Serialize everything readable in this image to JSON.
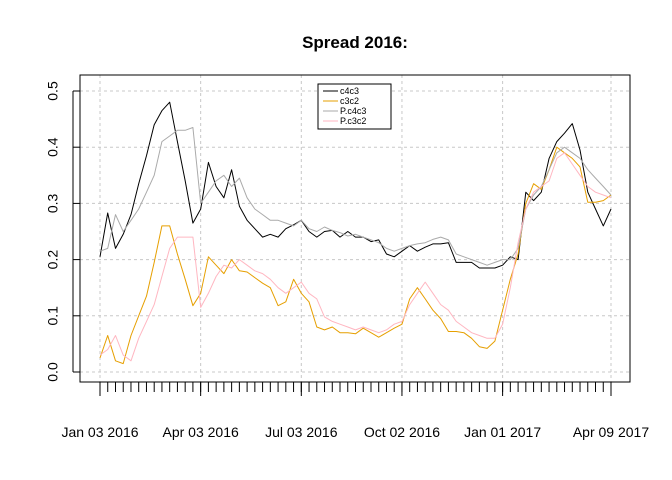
{
  "chart_data": {
    "type": "line",
    "title": "Spread 2016:",
    "xlabel": "",
    "ylabel": "",
    "ylim": [
      0,
      0.5
    ],
    "yticks": [
      0.0,
      0.1,
      0.2,
      0.3,
      0.4,
      0.5
    ],
    "ytick_labels": [
      "0.0",
      "0.1",
      "0.2",
      "0.3",
      "0.4",
      "0.5"
    ],
    "xlim": [
      "2016-01-03",
      "2017-04-09"
    ],
    "xticks": [
      {
        "date": "2016-01-03",
        "label": "Jan 03 2016"
      },
      {
        "date": "2016-04-03",
        "label": "Apr 03 2016"
      },
      {
        "date": "2016-07-03",
        "label": "Jul 03 2016"
      },
      {
        "date": "2016-10-02",
        "label": "Oct 02 2016"
      },
      {
        "date": "2017-01-01",
        "label": "Jan 01 2017"
      },
      {
        "date": "2017-04-09",
        "label": "Apr 09 2017"
      }
    ],
    "grid": true,
    "legend": "top-center",
    "x": [
      "2016-01-03",
      "2016-01-10",
      "2016-01-17",
      "2016-01-24",
      "2016-01-31",
      "2016-02-07",
      "2016-02-14",
      "2016-02-21",
      "2016-02-28",
      "2016-03-06",
      "2016-03-13",
      "2016-03-20",
      "2016-03-27",
      "2016-04-03",
      "2016-04-10",
      "2016-04-17",
      "2016-04-24",
      "2016-05-01",
      "2016-05-08",
      "2016-05-15",
      "2016-05-22",
      "2016-05-29",
      "2016-06-05",
      "2016-06-12",
      "2016-06-19",
      "2016-06-26",
      "2016-07-03",
      "2016-07-10",
      "2016-07-17",
      "2016-07-24",
      "2016-07-31",
      "2016-08-07",
      "2016-08-14",
      "2016-08-21",
      "2016-08-28",
      "2016-09-04",
      "2016-09-11",
      "2016-09-18",
      "2016-09-25",
      "2016-10-02",
      "2016-10-09",
      "2016-10-16",
      "2016-10-23",
      "2016-10-30",
      "2016-11-06",
      "2016-11-13",
      "2016-11-20",
      "2016-11-27",
      "2016-12-04",
      "2016-12-11",
      "2016-12-18",
      "2016-12-25",
      "2017-01-01",
      "2017-01-08",
      "2017-01-15",
      "2017-01-22",
      "2017-01-29",
      "2017-02-05",
      "2017-02-12",
      "2017-02-19",
      "2017-02-26",
      "2017-03-05",
      "2017-03-12",
      "2017-03-19",
      "2017-03-26",
      "2017-04-02",
      "2017-04-09"
    ],
    "series": [
      {
        "name": "c4c3",
        "color": "#000000",
        "values": [
          0.205,
          0.283,
          0.22,
          0.245,
          0.28,
          0.335,
          0.385,
          0.44,
          0.465,
          0.48,
          0.41,
          0.34,
          0.265,
          0.29,
          0.373,
          0.33,
          0.31,
          0.36,
          0.295,
          0.27,
          0.255,
          0.24,
          0.245,
          0.24,
          0.255,
          0.262,
          0.27,
          0.25,
          0.24,
          0.25,
          0.252,
          0.24,
          0.25,
          0.24,
          0.24,
          0.232,
          0.235,
          0.21,
          0.205,
          0.215,
          0.225,
          0.215,
          0.222,
          0.228,
          0.228,
          0.23,
          0.195,
          0.195,
          0.195,
          0.185,
          0.185,
          0.185,
          0.19,
          0.205,
          0.2,
          0.32,
          0.305,
          0.32,
          0.38,
          0.41,
          0.425,
          0.442,
          0.395,
          0.32,
          0.29,
          0.26,
          0.29
        ]
      },
      {
        "name": "c3c2",
        "color": "#e69f00",
        "values": [
          0.025,
          0.065,
          0.02,
          0.015,
          0.065,
          0.1,
          0.135,
          0.195,
          0.26,
          0.26,
          0.21,
          0.165,
          0.118,
          0.14,
          0.205,
          0.19,
          0.175,
          0.2,
          0.18,
          0.178,
          0.168,
          0.158,
          0.15,
          0.118,
          0.125,
          0.165,
          0.14,
          0.125,
          0.08,
          0.075,
          0.08,
          0.07,
          0.07,
          0.068,
          0.078,
          0.07,
          0.062,
          0.07,
          0.078,
          0.085,
          0.13,
          0.15,
          0.13,
          0.11,
          0.095,
          0.072,
          0.072,
          0.07,
          0.06,
          0.045,
          0.042,
          0.055,
          0.11,
          0.165,
          0.21,
          0.3,
          0.335,
          0.325,
          0.36,
          0.4,
          0.39,
          0.38,
          0.365,
          0.302,
          0.302,
          0.305,
          0.315
        ]
      },
      {
        "name": "P.c4c3",
        "color": "#aaaaaa",
        "values": [
          0.215,
          0.22,
          0.28,
          0.25,
          0.27,
          0.29,
          0.32,
          0.35,
          0.41,
          0.42,
          0.43,
          0.43,
          0.435,
          0.3,
          0.32,
          0.34,
          0.35,
          0.33,
          0.345,
          0.31,
          0.29,
          0.28,
          0.27,
          0.27,
          0.265,
          0.26,
          0.27,
          0.255,
          0.25,
          0.258,
          0.252,
          0.248,
          0.242,
          0.245,
          0.24,
          0.235,
          0.23,
          0.22,
          0.215,
          0.22,
          0.225,
          0.228,
          0.23,
          0.236,
          0.24,
          0.235,
          0.21,
          0.205,
          0.2,
          0.195,
          0.19,
          0.195,
          0.2,
          0.2,
          0.22,
          0.29,
          0.315,
          0.33,
          0.36,
          0.39,
          0.4,
          0.39,
          0.38,
          0.36,
          0.345,
          0.33,
          0.315
        ]
      },
      {
        "name": "P.c3c2",
        "color": "#ffb6c1",
        "values": [
          0.03,
          0.04,
          0.065,
          0.03,
          0.02,
          0.06,
          0.09,
          0.12,
          0.17,
          0.22,
          0.24,
          0.24,
          0.24,
          0.115,
          0.14,
          0.17,
          0.19,
          0.185,
          0.2,
          0.19,
          0.18,
          0.175,
          0.165,
          0.15,
          0.14,
          0.15,
          0.16,
          0.14,
          0.13,
          0.098,
          0.09,
          0.085,
          0.08,
          0.075,
          0.08,
          0.075,
          0.07,
          0.075,
          0.085,
          0.09,
          0.12,
          0.14,
          0.16,
          0.14,
          0.12,
          0.11,
          0.09,
          0.08,
          0.07,
          0.065,
          0.06,
          0.06,
          0.085,
          0.15,
          0.23,
          0.29,
          0.32,
          0.33,
          0.34,
          0.38,
          0.39,
          0.37,
          0.35,
          0.33,
          0.32,
          0.315,
          0.31
        ]
      }
    ]
  }
}
